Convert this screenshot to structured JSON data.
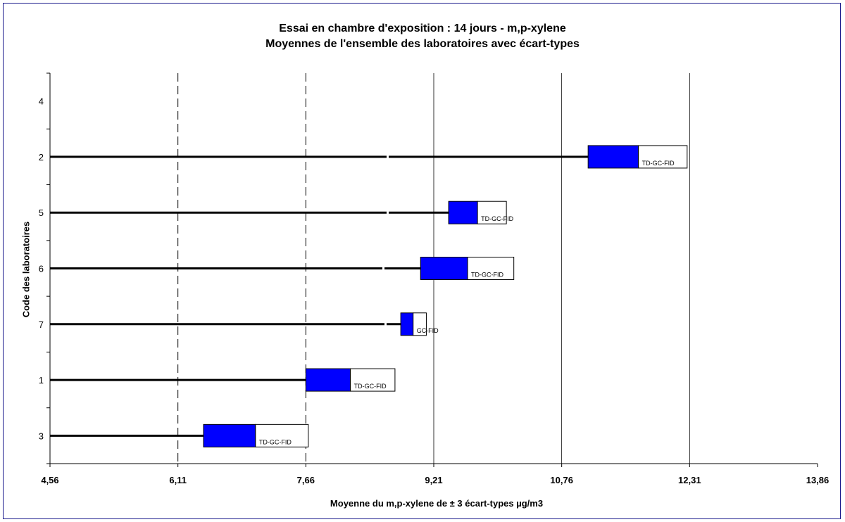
{
  "chart_data": {
    "type": "bar",
    "title": "Essai en chambre d'exposition : 14 jours - m,p-xylene",
    "subtitle": "Moyennes de l'ensemble des laboratoires avec écart-types",
    "xlabel": "Moyenne du m,p-xylene de ± 3 écart-types  µg/m3",
    "ylabel": "Code des laboratoires",
    "xlim": [
      4.56,
      13.86
    ],
    "x_ticks": [
      "4,56",
      "6,11",
      "7,66",
      "9,21",
      "10,76",
      "12,31",
      "13,86"
    ],
    "x_tick_values": [
      4.56,
      6.11,
      7.66,
      9.21,
      10.76,
      12.31,
      13.86
    ],
    "dashed_gridlines": [
      6.11,
      7.66
    ],
    "solid_gridlines": [
      9.21,
      10.76,
      12.31
    ],
    "categories": [
      "4",
      "2",
      "5",
      "6",
      "7",
      "1",
      "3"
    ],
    "series": [
      {
        "lab": "4",
        "value": null,
        "low": null,
        "high": null,
        "method": ""
      },
      {
        "lab": "2",
        "low": 11.08,
        "value": 11.69,
        "high": 12.28,
        "method": "TD-GC-FID"
      },
      {
        "lab": "5",
        "low": 9.39,
        "value": 9.74,
        "high": 10.09,
        "method": "TD-GC-FID"
      },
      {
        "lab": "6",
        "low": 9.05,
        "value": 9.62,
        "high": 10.18,
        "method": "TD-GC-FID"
      },
      {
        "lab": "7",
        "low": 8.81,
        "value": 8.96,
        "high": 9.12,
        "method": "GC-FID"
      },
      {
        "lab": "1",
        "low": 7.66,
        "value": 8.2,
        "high": 8.74,
        "method": "TD-GC-FID"
      },
      {
        "lab": "3",
        "low": 6.42,
        "value": 7.05,
        "high": 7.69,
        "method": "TD-GC-FID"
      }
    ],
    "colors": {
      "box_fill": "#0000ff",
      "upper_fill": "#ffffff",
      "line": "#000000"
    },
    "grid": true,
    "legend": "none"
  }
}
